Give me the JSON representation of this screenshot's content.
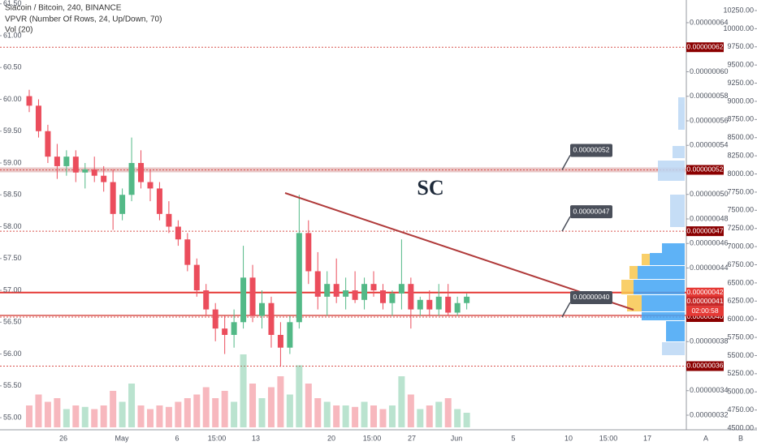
{
  "header": [
    "Siacoin / Bitcoin, 240, BINANCE",
    "VPVR (Number Of Rows, 24, Up/Down, 70)",
    "Vol (20)"
  ],
  "chart_data": {
    "type": "candlestick",
    "ylim": [
      54.81,
      61.56
    ],
    "yticks": [
      {
        "value": 55,
        "label": "55.00"
      },
      {
        "value": 55.5,
        "label": "55.50"
      },
      {
        "value": 56,
        "label": "56.00"
      },
      {
        "value": 56.5,
        "label": "56.50"
      },
      {
        "value": 57,
        "label": "57.00"
      },
      {
        "value": 57.5,
        "label": "57.50"
      },
      {
        "value": 58,
        "label": "58.00"
      },
      {
        "value": 58.5,
        "label": "58.50"
      },
      {
        "value": 59,
        "label": "59.00"
      },
      {
        "value": 59.5,
        "label": "59.50"
      },
      {
        "value": 60,
        "label": "60.00"
      },
      {
        "value": 60.5,
        "label": "60.50"
      },
      {
        "value": 61,
        "label": "61.00"
      },
      {
        "value": 61.5,
        "label": "61.50"
      }
    ],
    "y2lim": [
      4478,
      10395
    ],
    "y2ticks": [
      {
        "value": 4500,
        "label": "4500.00"
      },
      {
        "value": 4750,
        "label": "4750.00"
      },
      {
        "value": 5000,
        "label": "5000.00"
      },
      {
        "value": 5250,
        "label": "5250.00"
      },
      {
        "value": 5500,
        "label": "5500.00"
      },
      {
        "value": 5750,
        "label": "5750.00"
      },
      {
        "value": 6000,
        "label": "6000.00"
      },
      {
        "value": 6250,
        "label": "6250.00"
      },
      {
        "value": 6500,
        "label": "6500.00"
      },
      {
        "value": 6750,
        "label": "6750.00"
      },
      {
        "value": 7000,
        "label": "7000.00"
      },
      {
        "value": 7250,
        "label": "7250.00"
      },
      {
        "value": 7500,
        "label": "7500.00"
      },
      {
        "value": 7750,
        "label": "7750.00"
      },
      {
        "value": 8000,
        "label": "8000.00"
      },
      {
        "value": 8250,
        "label": "8250.00"
      },
      {
        "value": 8500,
        "label": "8500.00"
      },
      {
        "value": 8750,
        "label": "8750.00"
      },
      {
        "value": 9000,
        "label": "9000.00"
      },
      {
        "value": 9250,
        "label": "9250.00"
      },
      {
        "value": 9500,
        "label": "9500.00"
      },
      {
        "value": 9750,
        "label": "9750.00"
      },
      {
        "value": 10000,
        "label": "10000.00"
      },
      {
        "value": 10250,
        "label": "10250.00"
      }
    ],
    "price_lim": [
      3.081e-07,
      6.585e-07
    ],
    "price_ticks": [
      {
        "value": 3.2e-07,
        "label": "0.00000032"
      },
      {
        "value": 3.4e-07,
        "label": "0.00000034"
      },
      {
        "value": 3.8e-07,
        "label": "0.00000038"
      },
      {
        "value": 4.4e-07,
        "label": "0.00000044"
      },
      {
        "value": 4.6e-07,
        "label": "0.00000046"
      },
      {
        "value": 4.8e-07,
        "label": "0.00000048"
      },
      {
        "value": 5e-07,
        "label": "0.00000050"
      },
      {
        "value": 5.4e-07,
        "label": "0.00000054"
      },
      {
        "value": 5.6e-07,
        "label": "0.00000056"
      },
      {
        "value": 5.8e-07,
        "label": "0.00000058"
      },
      {
        "value": 6e-07,
        "label": "0.00000060"
      },
      {
        "value": 6.4e-07,
        "label": "0.00000064"
      }
    ],
    "levels": [
      {
        "value": 6.2e-07,
        "label": "0.00000062"
      },
      {
        "value": 5.2e-07,
        "label": "0.00000052"
      },
      {
        "value": 4.7e-07,
        "label": "0.00000047"
      },
      {
        "value": 4.2e-07,
        "label": "0.00000042"
      },
      {
        "value": 4e-07,
        "label": "0.00000040"
      },
      {
        "value": 3.6e-07,
        "label": "0.00000036"
      }
    ],
    "badges": [
      "0.00000041",
      "02:00:58"
    ],
    "annotation": "SC",
    "x_labels": [
      "26",
      "May",
      "6",
      "15:00",
      "13",
      "20",
      "15:00",
      "27",
      "Jun",
      "5",
      "10",
      "15:00",
      "17"
    ],
    "corner_labels": [
      "A",
      "B"
    ],
    "up_color": "#53b987",
    "down_color": "#eb4d5c",
    "candles": [
      {
        "o": 60.05,
        "h": 60.15,
        "l": 59.8,
        "c": 59.9
      },
      {
        "o": 59.9,
        "h": 60.0,
        "l": 59.4,
        "c": 59.5
      },
      {
        "o": 59.5,
        "h": 59.6,
        "l": 59.0,
        "c": 59.1
      },
      {
        "o": 59.1,
        "h": 59.3,
        "l": 58.75,
        "c": 58.95
      },
      {
        "o": 58.95,
        "h": 59.2,
        "l": 58.8,
        "c": 59.1
      },
      {
        "o": 59.1,
        "h": 59.2,
        "l": 58.7,
        "c": 58.85
      },
      {
        "o": 58.85,
        "h": 59.0,
        "l": 58.6,
        "c": 58.9
      },
      {
        "o": 58.9,
        "h": 59.1,
        "l": 58.7,
        "c": 58.8
      },
      {
        "o": 58.8,
        "h": 58.95,
        "l": 58.55,
        "c": 58.7
      },
      {
        "o": 58.7,
        "h": 58.9,
        "l": 57.95,
        "c": 58.2
      },
      {
        "o": 58.2,
        "h": 58.6,
        "l": 58.1,
        "c": 58.5
      },
      {
        "o": 58.5,
        "h": 59.4,
        "l": 58.4,
        "c": 59.0
      },
      {
        "o": 59.0,
        "h": 59.2,
        "l": 58.6,
        "c": 58.7
      },
      {
        "o": 58.7,
        "h": 58.9,
        "l": 58.4,
        "c": 58.6
      },
      {
        "o": 58.6,
        "h": 58.7,
        "l": 58.1,
        "c": 58.2
      },
      {
        "o": 58.2,
        "h": 58.4,
        "l": 57.9,
        "c": 58.0
      },
      {
        "o": 58.0,
        "h": 58.1,
        "l": 57.7,
        "c": 57.8
      },
      {
        "o": 57.8,
        "h": 57.9,
        "l": 57.3,
        "c": 57.4
      },
      {
        "o": 57.4,
        "h": 57.5,
        "l": 56.9,
        "c": 57.0
      },
      {
        "o": 57.0,
        "h": 57.1,
        "l": 56.6,
        "c": 56.7
      },
      {
        "o": 56.7,
        "h": 56.8,
        "l": 56.2,
        "c": 56.4
      },
      {
        "o": 56.4,
        "h": 56.6,
        "l": 56.0,
        "c": 56.3
      },
      {
        "o": 56.3,
        "h": 56.7,
        "l": 56.1,
        "c": 56.5
      },
      {
        "o": 56.5,
        "h": 57.7,
        "l": 56.4,
        "c": 57.2
      },
      {
        "o": 57.2,
        "h": 57.4,
        "l": 56.5,
        "c": 56.6
      },
      {
        "o": 56.6,
        "h": 57.0,
        "l": 56.4,
        "c": 56.8
      },
      {
        "o": 56.8,
        "h": 56.9,
        "l": 56.1,
        "c": 56.3
      },
      {
        "o": 56.3,
        "h": 56.5,
        "l": 55.8,
        "c": 56.1
      },
      {
        "o": 56.1,
        "h": 56.6,
        "l": 56.0,
        "c": 56.5
      },
      {
        "o": 56.5,
        "h": 58.5,
        "l": 56.4,
        "c": 57.9
      },
      {
        "o": 57.9,
        "h": 58.1,
        "l": 57.1,
        "c": 57.3
      },
      {
        "o": 57.3,
        "h": 57.6,
        "l": 56.7,
        "c": 56.9
      },
      {
        "o": 56.9,
        "h": 57.3,
        "l": 56.6,
        "c": 57.1
      },
      {
        "o": 57.1,
        "h": 57.5,
        "l": 56.8,
        "c": 56.9
      },
      {
        "o": 56.9,
        "h": 57.2,
        "l": 56.7,
        "c": 57.0
      },
      {
        "o": 57.0,
        "h": 57.3,
        "l": 56.8,
        "c": 56.85
      },
      {
        "o": 56.85,
        "h": 57.2,
        "l": 56.7,
        "c": 57.1
      },
      {
        "o": 57.1,
        "h": 57.3,
        "l": 56.9,
        "c": 57.0
      },
      {
        "o": 57.0,
        "h": 57.1,
        "l": 56.7,
        "c": 56.8
      },
      {
        "o": 56.8,
        "h": 57.0,
        "l": 56.6,
        "c": 56.95
      },
      {
        "o": 56.95,
        "h": 57.8,
        "l": 56.7,
        "c": 57.1
      },
      {
        "o": 57.1,
        "h": 57.2,
        "l": 56.4,
        "c": 56.7
      },
      {
        "o": 56.7,
        "h": 56.9,
        "l": 56.6,
        "c": 56.85
      },
      {
        "o": 56.85,
        "h": 57.0,
        "l": 56.6,
        "c": 56.7
      },
      {
        "o": 56.7,
        "h": 57.1,
        "l": 56.6,
        "c": 56.9
      },
      {
        "o": 56.9,
        "h": 57.1,
        "l": 56.6,
        "c": 56.65
      },
      {
        "o": 56.65,
        "h": 56.9,
        "l": 56.6,
        "c": 56.8
      },
      {
        "o": 56.8,
        "h": 56.95,
        "l": 56.7,
        "c": 56.9
      }
    ],
    "volume": [
      30,
      45,
      35,
      40,
      25,
      30,
      28,
      25,
      30,
      50,
      35,
      60,
      30,
      25,
      30,
      28,
      35,
      40,
      45,
      55,
      40,
      50,
      35,
      100,
      60,
      40,
      55,
      70,
      45,
      85,
      60,
      40,
      35,
      30,
      30,
      28,
      35,
      30,
      25,
      30,
      70,
      45,
      25,
      30,
      35,
      40,
      25,
      20
    ]
  }
}
